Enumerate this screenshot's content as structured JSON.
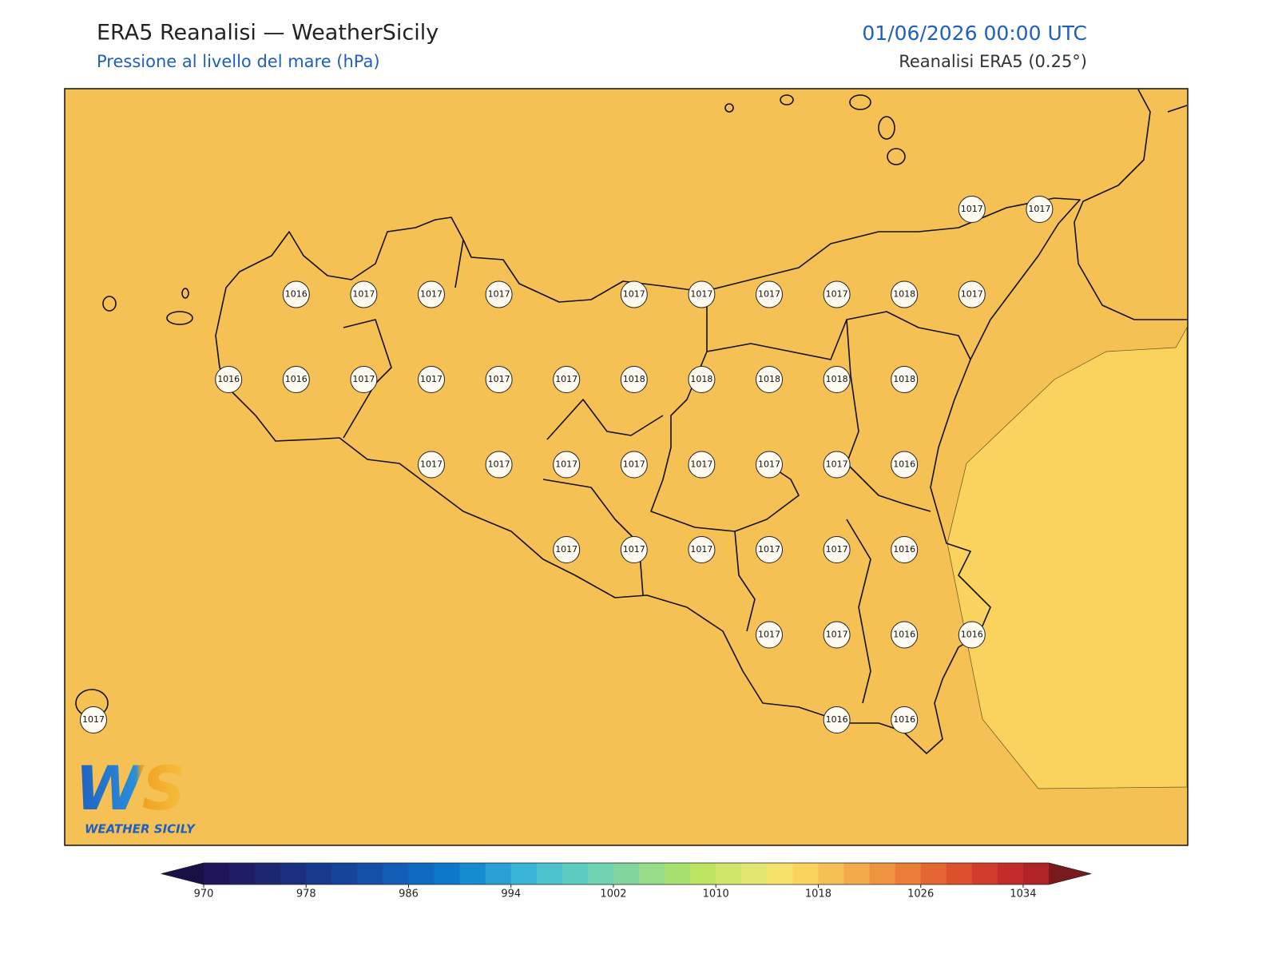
{
  "header": {
    "title": "ERA5 Reanalisi — WeatherSicily",
    "subtitle": "Pressione al livello del mare (hPa)",
    "valid_time": "01/06/2026 00:00 UTC",
    "source": "Reanalisi ERA5 (0.25°)"
  },
  "stations": [
    [
      null,
      null,
      null,
      null,
      null,
      null,
      null,
      null,
      null,
      null,
      null,
      null,
      null,
      1017,
      1017
    ],
    [
      null,
      null,
      null,
      1016,
      1017,
      1017,
      1017,
      null,
      1017,
      1017,
      1017,
      1017,
      1018,
      1017,
      null
    ],
    [
      null,
      null,
      1016,
      1016,
      1017,
      1017,
      1017,
      1017,
      1018,
      1018,
      1018,
      1018,
      1018,
      null,
      null
    ],
    [
      null,
      null,
      null,
      null,
      null,
      1017,
      1017,
      1017,
      1017,
      1017,
      1017,
      1017,
      1016,
      null,
      null
    ],
    [
      null,
      null,
      null,
      null,
      null,
      null,
      null,
      1017,
      1017,
      1017,
      1017,
      1017,
      1016,
      null,
      null
    ],
    [
      null,
      null,
      null,
      null,
      null,
      null,
      null,
      null,
      null,
      null,
      1017,
      1017,
      1016,
      1016,
      null
    ],
    [
      1017,
      null,
      null,
      null,
      null,
      null,
      null,
      null,
      null,
      null,
      null,
      1016,
      1016,
      null,
      null
    ]
  ],
  "logo": {
    "mark": "WS",
    "name": "WEATHER SICILY"
  },
  "colorbar": {
    "lim": [
      970,
      1036
    ],
    "step": 2,
    "ticks": [
      970,
      978,
      986,
      994,
      1002,
      1010,
      1018,
      1026,
      1034
    ],
    "colors": [
      "#20145a",
      "#1f1d66",
      "#1d2670",
      "#1b2f80",
      "#183a8c",
      "#16449a",
      "#1450a8",
      "#125db5",
      "#0f6ac0",
      "#0e78c8",
      "#168ccf",
      "#2a9fd3",
      "#38b4d4",
      "#4cc2cc",
      "#5ecbc0",
      "#70d2b0",
      "#80d69c",
      "#94dc88",
      "#a8e070",
      "#bce460",
      "#d0e66a",
      "#e2e670",
      "#f6e26a",
      "#fad25e",
      "#f5c054",
      "#f2aa4a",
      "#ee9440",
      "#ea7e38",
      "#e46632",
      "#dc502e",
      "#cf3c2c",
      "#c22c2a",
      "#b02428"
    ],
    "under": "#1a1048",
    "over": "#7a1a1c"
  }
}
